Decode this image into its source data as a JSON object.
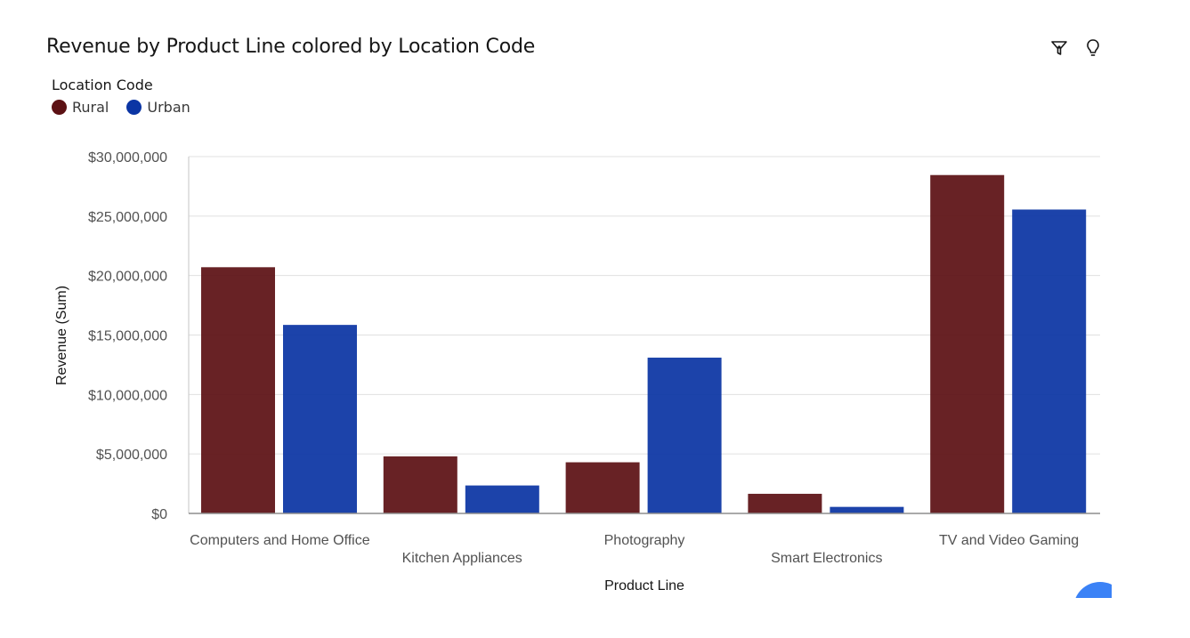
{
  "title": "Revenue by Product Line colored by Location Code",
  "toolbar": {
    "filter_icon": "filter-icon",
    "insight_icon": "lightbulb-icon"
  },
  "legend": {
    "title": "Location Code",
    "items": [
      {
        "label": "Rural",
        "color": "#5c1114"
      },
      {
        "label": "Urban",
        "color": "#0b35a4"
      }
    ]
  },
  "chart_data": {
    "type": "bar",
    "title": "Revenue by Product Line colored by Location Code",
    "xlabel": "Product Line",
    "ylabel": "Revenue (Sum)",
    "categories": [
      "Computers and Home Office",
      "Kitchen Appliances",
      "Photography",
      "Smart Electronics",
      "TV and Video Gaming"
    ],
    "series": [
      {
        "name": "Rural",
        "color": "#5c1114",
        "values": [
          20700000,
          4800000,
          4300000,
          1650000,
          28450000
        ]
      },
      {
        "name": "Urban",
        "color": "#0b35a4",
        "values": [
          15850000,
          2350000,
          13100000,
          550000,
          25550000
        ]
      }
    ],
    "ylim": [
      0,
      30000000
    ],
    "yticks": [
      0,
      5000000,
      10000000,
      15000000,
      20000000,
      25000000,
      30000000
    ],
    "ytick_labels": [
      "$0",
      "$5,000,000",
      "$10,000,000",
      "$15,000,000",
      "$20,000,000",
      "$25,000,000",
      "$30,000,000"
    ],
    "grid": true,
    "legend_position": "top-left"
  }
}
